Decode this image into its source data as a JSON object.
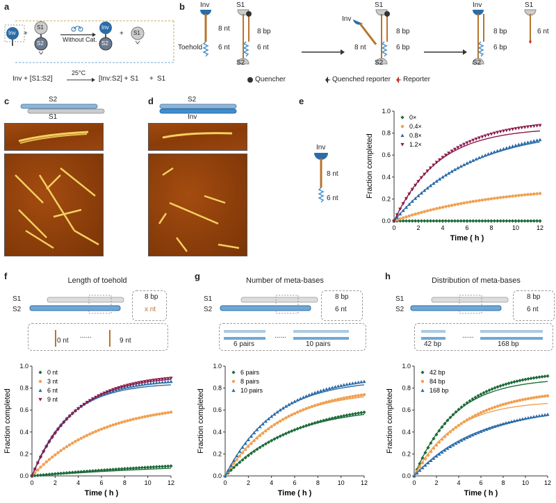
{
  "panel_labels": {
    "a": "a",
    "b": "b",
    "c": "c",
    "d": "d",
    "e": "e",
    "f": "f",
    "g": "g",
    "h": "h"
  },
  "panel_a": {
    "inv": "Inv",
    "s1": "S1",
    "s2": "S2",
    "plus": "+",
    "without_cat": "Without Cat.",
    "temp": "25°C",
    "eq_left": "Inv + [S1:S2]",
    "eq_right": "[Inv:S2] + S1"
  },
  "panel_b": {
    "inv": "Inv",
    "s1": "S1",
    "s2": "S2",
    "toehold": "Toehold",
    "nt8": "8 nt",
    "nt6": "6 nt",
    "bp8": "8 bp",
    "bp6": "6 bp",
    "legend_quencher": "Quencher",
    "legend_quenched": "Quenched reporter",
    "legend_reporter": "Reporter"
  },
  "panel_c": {
    "s2": "S2",
    "s1": "S1"
  },
  "panel_d": {
    "s2": "S2",
    "inv": "Inv"
  },
  "panel_e_schematic": {
    "inv": "Inv",
    "nt8": "8 nt",
    "nt6": "6 nt"
  },
  "panel_f": {
    "title": "Length of toehold",
    "s1": "S1",
    "s2": "S2",
    "bp8": "8 bp",
    "xnt": "x nt",
    "nt0": "0 nt",
    "nt9": "9 nt",
    "dots": "......"
  },
  "panel_g": {
    "title": "Number of meta-bases",
    "s1": "S1",
    "s2": "S2",
    "bp8": "8 bp",
    "nt6": "6 nt",
    "p6": "6 pairs",
    "p10": "10 pairs",
    "dots": "......"
  },
  "panel_h": {
    "title": "Distribution of meta-bases",
    "s1": "S1",
    "s2": "S2",
    "bp8": "8 bp",
    "nt6": "6 nt",
    "b42": "42 bp",
    "b168": "168 bp",
    "dots": "......"
  },
  "colors": {
    "green": "#1e6b3a",
    "orange": "#f0a050",
    "blue": "#2b6ca8",
    "maroon": "#8b1a4a",
    "steel": "#6fa8d6",
    "brown": "#b8742c"
  },
  "chart_data": [
    {
      "id": "e",
      "type": "scatter",
      "xlabel": "Time ( h )",
      "ylabel": "Fraction completed",
      "xlim": [
        0,
        12
      ],
      "ylim": [
        0,
        1.0
      ],
      "xticks": [
        0,
        2,
        4,
        6,
        8,
        10,
        12
      ],
      "yticks": [
        0,
        0.2,
        0.4,
        0.6,
        0.8,
        1.0
      ],
      "legend_position": "top-left",
      "series": [
        {
          "name": "0×",
          "color": "#1e6b3a",
          "marker": "diamond",
          "final": 0.0,
          "k": 0.3,
          "fit_final": 0.0,
          "fit_k": 0.3
        },
        {
          "name": "0.4×",
          "color": "#f0a050",
          "marker": "circle",
          "final": 0.25,
          "k": 0.12,
          "fit_final": 0.25,
          "fit_k": 0.12
        },
        {
          "name": "0.8×",
          "color": "#2b6ca8",
          "marker": "triangle",
          "final": 0.74,
          "k": 0.15,
          "fit_final": 0.72,
          "fit_k": 0.16
        },
        {
          "name": "1.2×",
          "color": "#8b1a4a",
          "marker": "triangle-down",
          "final": 0.87,
          "k": 0.25,
          "fit_final": 0.82,
          "fit_k": 0.28
        }
      ]
    },
    {
      "id": "f",
      "type": "scatter",
      "xlabel": "Time ( h )",
      "ylabel": "Fraction completed",
      "xlim": [
        0,
        12
      ],
      "ylim": [
        0,
        1.0
      ],
      "xticks": [
        0,
        2,
        4,
        6,
        8,
        10,
        12
      ],
      "yticks": [
        0,
        0.2,
        0.4,
        0.6,
        0.8,
        1.0
      ],
      "legend_position": "top-left",
      "series": [
        {
          "name": "0 nt",
          "color": "#1e6b3a",
          "marker": "diamond",
          "final": 0.09,
          "k": 0.05,
          "fit_final": 0.07,
          "fit_k": 0.05
        },
        {
          "name": "3 nt",
          "color": "#f0a050",
          "marker": "circle",
          "final": 0.58,
          "k": 0.17,
          "fit_final": 0.58,
          "fit_k": 0.17
        },
        {
          "name": "6 nt",
          "color": "#2b6ca8",
          "marker": "triangle",
          "final": 0.86,
          "k": 0.3,
          "fit_final": 0.83,
          "fit_k": 0.32
        },
        {
          "name": "9 nt",
          "color": "#8b1a4a",
          "marker": "triangle-down",
          "final": 0.89,
          "k": 0.27,
          "fit_final": 0.88,
          "fit_k": 0.28
        }
      ]
    },
    {
      "id": "g",
      "type": "scatter",
      "xlabel": "Time ( h )",
      "ylabel": "Fraction completed",
      "xlim": [
        0,
        12
      ],
      "ylim": [
        0,
        1.0
      ],
      "xticks": [
        0,
        2,
        4,
        6,
        8,
        10,
        12
      ],
      "yticks": [
        0,
        0.2,
        0.4,
        0.6,
        0.8,
        1.0
      ],
      "legend_position": "top-left",
      "series": [
        {
          "name": "6 pairs",
          "color": "#1e6b3a",
          "marker": "diamond",
          "final": 0.58,
          "k": 0.16,
          "fit_final": 0.56,
          "fit_k": 0.18
        },
        {
          "name": "8 pairs",
          "color": "#f0a050",
          "marker": "circle",
          "final": 0.74,
          "k": 0.2,
          "fit_final": 0.72,
          "fit_k": 0.22
        },
        {
          "name": "10 pairs",
          "color": "#2b6ca8",
          "marker": "triangle",
          "final": 0.86,
          "k": 0.22,
          "fit_final": 0.83,
          "fit_k": 0.24
        }
      ]
    },
    {
      "id": "h",
      "type": "scatter",
      "xlabel": "Time ( h )",
      "ylabel": "Fraction completed",
      "xlim": [
        0,
        12
      ],
      "ylim": [
        0,
        1.0
      ],
      "xticks": [
        0,
        2,
        4,
        6,
        8,
        10,
        12
      ],
      "yticks": [
        0,
        0.2,
        0.4,
        0.6,
        0.8,
        1.0
      ],
      "legend_position": "top-left",
      "series": [
        {
          "name": "42 bp",
          "color": "#1e6b3a",
          "marker": "diamond",
          "final": 0.91,
          "k": 0.25,
          "fit_final": 0.86,
          "fit_k": 0.28
        },
        {
          "name": "84 bp",
          "color": "#f0a050",
          "marker": "circle",
          "final": 0.73,
          "k": 0.22,
          "fit_final": 0.66,
          "fit_k": 0.28
        },
        {
          "name": "168 bp",
          "color": "#2b6ca8",
          "marker": "triangle",
          "final": 0.56,
          "k": 0.16,
          "fit_final": 0.55,
          "fit_k": 0.18
        }
      ]
    }
  ]
}
